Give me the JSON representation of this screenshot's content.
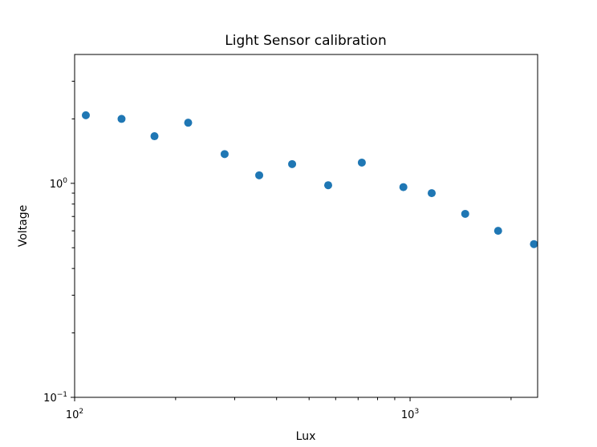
{
  "chart_data": {
    "type": "scatter",
    "title": "Light Sensor calibration",
    "xlabel": "Lux",
    "ylabel": "Voltage",
    "xscale": "log",
    "yscale": "log",
    "xlim": [
      100,
      2400
    ],
    "ylim": [
      0.1,
      4
    ],
    "grid": false,
    "color": "#1f77b4",
    "xticks": [
      {
        "value": 100,
        "base": "10",
        "exp": "2"
      },
      {
        "value": 1000,
        "base": "10",
        "exp": "3"
      }
    ],
    "yticks": [
      {
        "value": 0.1,
        "base": "10",
        "exp": "−1"
      },
      {
        "value": 1,
        "base": "10",
        "exp": "0"
      }
    ],
    "x": [
      108,
      138,
      173,
      218,
      280,
      355,
      445,
      570,
      718,
      955,
      1160,
      1460,
      1830,
      2340
    ],
    "y": [
      2.08,
      2.0,
      1.66,
      1.92,
      1.37,
      1.09,
      1.23,
      0.98,
      1.25,
      0.96,
      0.9,
      0.72,
      0.6,
      0.52
    ]
  }
}
